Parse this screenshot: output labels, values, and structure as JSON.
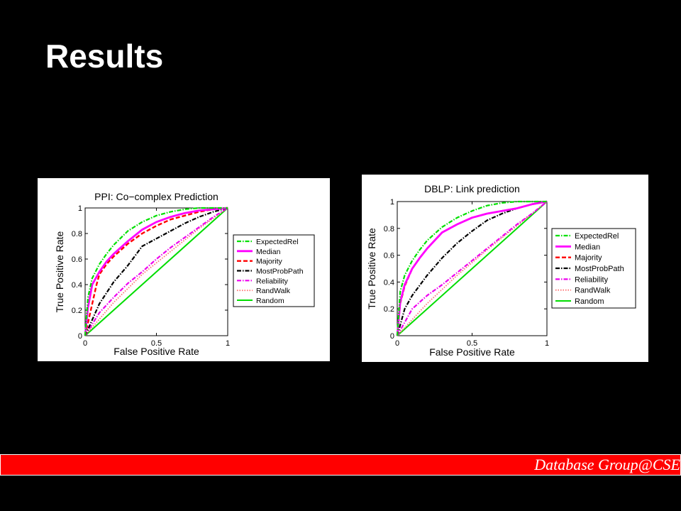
{
  "slide": {
    "title": "Results"
  },
  "footer": {
    "text": "Database Group@CSE"
  },
  "colors": {
    "background": "#000000",
    "footer_bar": "#ff0000",
    "ExpectedRel": "#00e000",
    "Median": "#ff00ff",
    "Majority": "#ff0000",
    "MostProbPath": "#000000",
    "Reliability": "#ee00ee",
    "RandWalk": "#ff7070",
    "Random": "#00dd00"
  },
  "chart_data": [
    {
      "type": "line",
      "title": "PPI: Co−complex Prediction",
      "xlabel": "False Positive Rate",
      "ylabel": "True Positive Rate",
      "xlim": [
        0,
        1
      ],
      "ylim": [
        0,
        1
      ],
      "xticks": [
        "0",
        "0.5",
        "1"
      ],
      "yticks": [
        "0",
        "0.2",
        "0.4",
        "0.6",
        "0.8",
        "1"
      ],
      "legend_position": "right",
      "series": [
        {
          "name": "ExpectedRel",
          "style": "dashdot",
          "x": [
            0,
            0.02,
            0.05,
            0.1,
            0.15,
            0.2,
            0.3,
            0.4,
            0.5,
            0.6,
            0.7,
            0.8,
            0.9,
            1
          ],
          "y": [
            0,
            0.3,
            0.45,
            0.56,
            0.64,
            0.71,
            0.82,
            0.89,
            0.94,
            0.97,
            0.99,
            1,
            1,
            1
          ]
        },
        {
          "name": "Median",
          "style": "solid",
          "x": [
            0,
            0.02,
            0.05,
            0.1,
            0.15,
            0.2,
            0.3,
            0.4,
            0.5,
            0.6,
            0.7,
            0.8,
            0.9,
            1
          ],
          "y": [
            0,
            0.22,
            0.4,
            0.5,
            0.58,
            0.64,
            0.74,
            0.83,
            0.89,
            0.93,
            0.96,
            0.98,
            0.99,
            1
          ]
        },
        {
          "name": "Majority",
          "style": "dashed",
          "x": [
            0,
            0.04,
            0.08,
            0.1,
            0.15,
            0.2,
            0.3,
            0.4,
            0.5,
            0.6,
            0.7,
            0.8,
            0.9,
            1
          ],
          "y": [
            0,
            0.2,
            0.4,
            0.48,
            0.56,
            0.62,
            0.72,
            0.8,
            0.86,
            0.91,
            0.94,
            0.97,
            0.99,
            1
          ]
        },
        {
          "name": "MostProbPath",
          "style": "dashdot",
          "x": [
            0,
            0.1,
            0.2,
            0.3,
            0.4,
            0.5,
            0.6,
            0.7,
            0.8,
            0.9,
            1
          ],
          "y": [
            0,
            0.25,
            0.42,
            0.55,
            0.7,
            0.76,
            0.82,
            0.88,
            0.93,
            0.97,
            1
          ]
        },
        {
          "name": "Reliability",
          "style": "dashdot",
          "x": [
            0,
            0.1,
            0.2,
            0.3,
            0.4,
            0.5,
            0.6,
            0.7,
            0.8,
            0.9,
            1
          ],
          "y": [
            0,
            0.18,
            0.3,
            0.41,
            0.5,
            0.6,
            0.69,
            0.77,
            0.85,
            0.93,
            1
          ]
        },
        {
          "name": "RandWalk",
          "style": "dotted",
          "x": [
            0,
            0.2,
            0.4,
            0.6,
            0.8,
            1
          ],
          "y": [
            0,
            0.26,
            0.48,
            0.66,
            0.84,
            1
          ]
        },
        {
          "name": "Random",
          "style": "solid",
          "x": [
            0,
            1
          ],
          "y": [
            0,
            1
          ]
        }
      ]
    },
    {
      "type": "line",
      "title": "DBLP: Link prediction",
      "xlabel": "False Positive Rate",
      "ylabel": "True Positive Rate",
      "xlim": [
        0,
        1
      ],
      "ylim": [
        0,
        1
      ],
      "xticks": [
        "0",
        "0.5",
        "1"
      ],
      "yticks": [
        "0",
        "0.2",
        "0.4",
        "0.6",
        "0.8",
        "1"
      ],
      "legend_position": "right",
      "series": [
        {
          "name": "ExpectedRel",
          "style": "dashdot",
          "x": [
            0,
            0.02,
            0.05,
            0.1,
            0.15,
            0.2,
            0.3,
            0.4,
            0.5,
            0.6,
            0.7,
            0.8,
            0.9,
            1
          ],
          "y": [
            0,
            0.33,
            0.45,
            0.56,
            0.64,
            0.71,
            0.81,
            0.88,
            0.93,
            0.97,
            0.99,
            1,
            1,
            1
          ]
        },
        {
          "name": "Median",
          "style": "solid",
          "x": [
            0,
            0.02,
            0.05,
            0.1,
            0.15,
            0.2,
            0.3,
            0.4,
            0.5,
            0.6,
            0.7,
            0.8,
            0.9,
            1
          ],
          "y": [
            0,
            0.25,
            0.38,
            0.5,
            0.58,
            0.65,
            0.77,
            0.83,
            0.88,
            0.91,
            0.93,
            0.95,
            0.98,
            1
          ]
        },
        {
          "name": "Majority",
          "style": "dashed",
          "x": [
            0,
            0.02,
            0.05,
            0.1,
            0.15,
            0.2,
            0.3,
            0.4,
            0.5,
            0.6,
            0.7,
            0.8,
            0.9,
            1
          ],
          "y": [
            0,
            0.24,
            0.37,
            0.5,
            0.58,
            0.65,
            0.77,
            0.83,
            0.88,
            0.91,
            0.93,
            0.95,
            0.98,
            1
          ]
        },
        {
          "name": "MostProbPath",
          "style": "dashdot",
          "x": [
            0,
            0.05,
            0.1,
            0.2,
            0.3,
            0.4,
            0.5,
            0.6,
            0.7,
            0.8,
            0.9,
            1
          ],
          "y": [
            0,
            0.2,
            0.3,
            0.45,
            0.58,
            0.69,
            0.78,
            0.86,
            0.91,
            0.95,
            0.98,
            1
          ]
        },
        {
          "name": "Reliability",
          "style": "dashdot",
          "x": [
            0,
            0.1,
            0.2,
            0.3,
            0.4,
            0.5,
            0.6,
            0.7,
            0.8,
            0.9,
            1
          ],
          "y": [
            0,
            0.2,
            0.3,
            0.38,
            0.47,
            0.56,
            0.65,
            0.74,
            0.83,
            0.91,
            1
          ]
        },
        {
          "name": "RandWalk",
          "style": "dotted",
          "x": [
            0,
            0.2,
            0.4,
            0.6,
            0.8,
            1
          ],
          "y": [
            0,
            0.24,
            0.45,
            0.64,
            0.82,
            1
          ]
        },
        {
          "name": "Random",
          "style": "solid",
          "x": [
            0,
            1
          ],
          "y": [
            0,
            1
          ]
        }
      ]
    }
  ]
}
